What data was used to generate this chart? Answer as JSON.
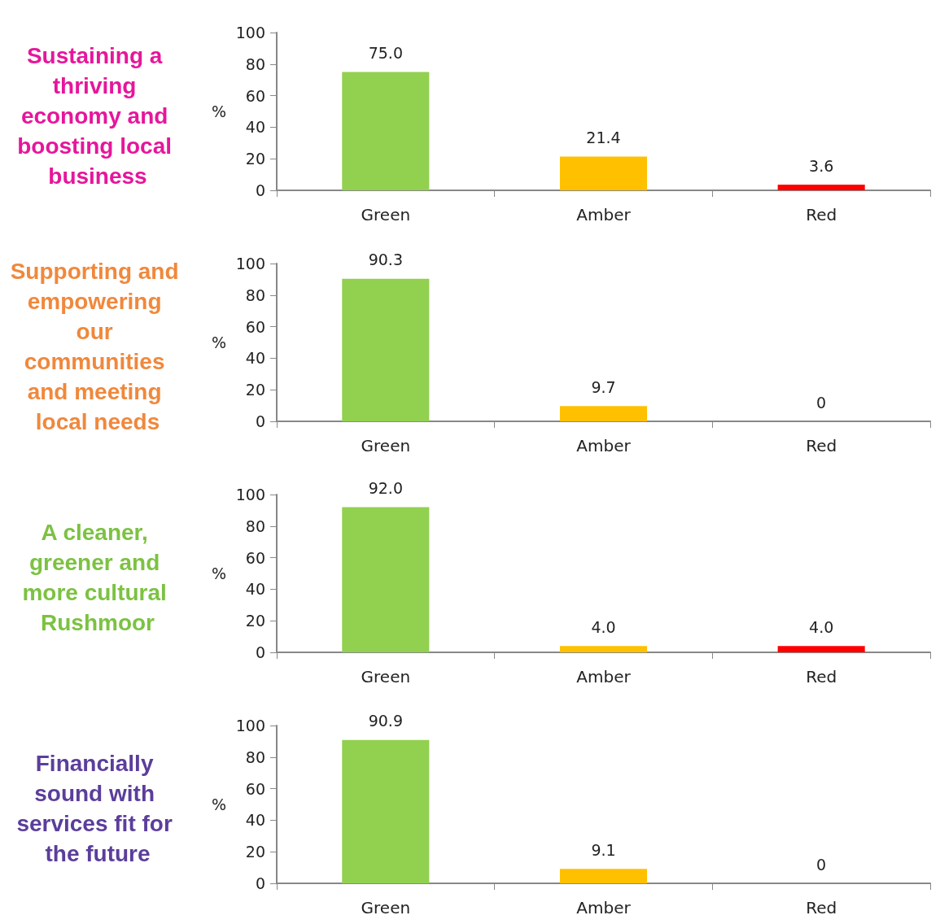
{
  "chart_data": [
    {
      "type": "bar",
      "title": "Sustaining a thriving economy and boosting local business",
      "ylabel": "%",
      "categories": [
        "Green",
        "Amber",
        "Red"
      ],
      "values": [
        75.0,
        21.4,
        3.6
      ],
      "value_labels": [
        "75.0",
        "21.4",
        "3.6"
      ],
      "colors": [
        "#92d050",
        "#ffc000",
        "#ff0000"
      ],
      "ylim": [
        0,
        100
      ],
      "yticks": [
        0,
        20,
        40,
        60,
        80,
        100
      ]
    },
    {
      "type": "bar",
      "title": "Supporting and empowering our communities and meeting local needs",
      "ylabel": "%",
      "categories": [
        "Green",
        "Amber",
        "Red"
      ],
      "values": [
        90.3,
        9.7,
        0
      ],
      "value_labels": [
        "90.3",
        "9.7",
        "0"
      ],
      "colors": [
        "#92d050",
        "#ffc000",
        "#ff0000"
      ],
      "ylim": [
        0,
        100
      ],
      "yticks": [
        0,
        20,
        40,
        60,
        80,
        100
      ]
    },
    {
      "type": "bar",
      "title": "A cleaner, greener and more cultural Rushmoor",
      "ylabel": "%",
      "categories": [
        "Green",
        "Amber",
        "Red"
      ],
      "values": [
        92.0,
        4.0,
        4.0
      ],
      "value_labels": [
        "92.0",
        "4.0",
        "4.0"
      ],
      "colors": [
        "#92d050",
        "#ffc000",
        "#ff0000"
      ],
      "ylim": [
        0,
        100
      ],
      "yticks": [
        0,
        20,
        40,
        60,
        80,
        100
      ]
    },
    {
      "type": "bar",
      "title": "Financially sound with services fit for the future",
      "ylabel": "%",
      "categories": [
        "Green",
        "Amber",
        "Red"
      ],
      "values": [
        90.9,
        9.1,
        0
      ],
      "value_labels": [
        "90.9",
        "9.1",
        "0"
      ],
      "colors": [
        "#92d050",
        "#ffc000",
        "#ff0000"
      ],
      "ylim": [
        0,
        100
      ],
      "yticks": [
        0,
        20,
        40,
        60,
        80,
        100
      ]
    }
  ]
}
